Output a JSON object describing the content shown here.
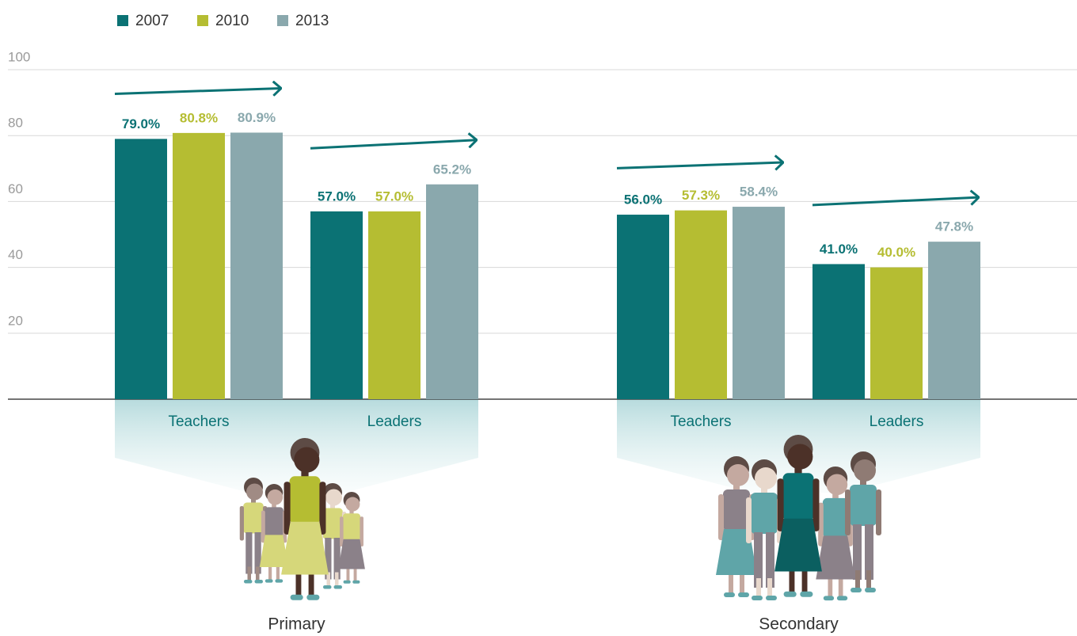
{
  "chart_data": {
    "type": "bar",
    "categories": [
      "Teachers",
      "Leaders",
      "Teachers",
      "Leaders"
    ],
    "groups": [
      "Primary",
      "Secondary"
    ],
    "series": [
      {
        "name": "2007",
        "color": "#0b7274",
        "values": [
          79.0,
          57.0,
          56.0,
          41.0
        ],
        "value_labels": [
          "79.0%",
          "57.0%",
          "56.0%",
          "41.0%"
        ]
      },
      {
        "name": "2010",
        "color": "#b5bd32",
        "values": [
          80.8,
          57.0,
          57.3,
          40.0
        ],
        "value_labels": [
          "80.8%",
          "57.0%",
          "57.3%",
          "40.0%"
        ]
      },
      {
        "name": "2013",
        "color": "#8aa8ad",
        "values": [
          80.9,
          65.2,
          58.4,
          47.8
        ],
        "value_labels": [
          "80.9%",
          "65.2%",
          "58.4%",
          "47.8%"
        ]
      }
    ],
    "ylim": [
      0,
      100
    ],
    "yticks": [
      20,
      40,
      60,
      80,
      100
    ],
    "grid": true
  }
}
